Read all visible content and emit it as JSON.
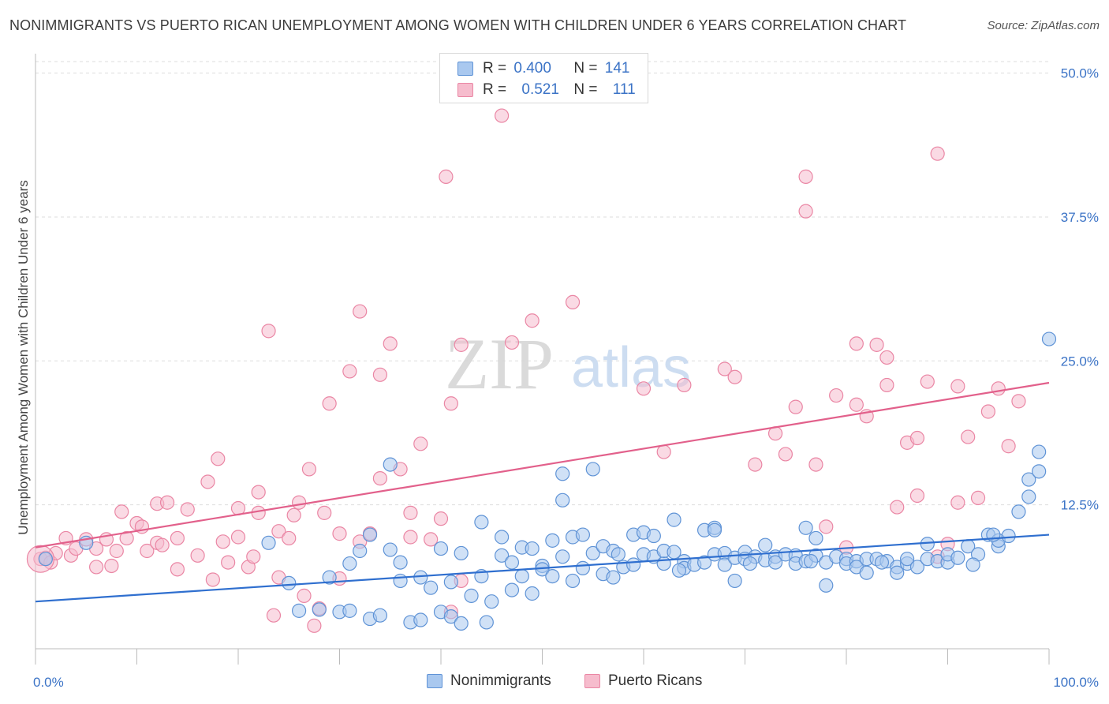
{
  "title": "NONIMMIGRANTS VS PUERTO RICAN UNEMPLOYMENT AMONG WOMEN WITH CHILDREN UNDER 6 YEARS CORRELATION CHART",
  "source": "Source: ZipAtlas.com",
  "watermark": {
    "zip": "ZIP",
    "atlas": "atlas"
  },
  "legend": {
    "rows": [
      {
        "r_label": "R =",
        "r_value": "0.400",
        "n_label": "N =",
        "n_value": "141"
      },
      {
        "r_label": "R =",
        "r_value": "0.521",
        "n_label": "N =",
        "n_value": "111"
      }
    ]
  },
  "colors": {
    "blue_fill": "#a9c8ef",
    "blue_stroke": "#5f93d6",
    "blue_line": "#2f6fcf",
    "pink_fill": "#f6bccd",
    "pink_stroke": "#ea86a4",
    "pink_line": "#e2608b",
    "tick_label": "#3b73c6",
    "grid": "#dddddd"
  },
  "chart_data": {
    "type": "scatter",
    "title": "NONIMMIGRANTS VS PUERTO RICAN UNEMPLOYMENT AMONG WOMEN WITH CHILDREN UNDER 6 YEARS CORRELATION CHART",
    "xlabel": "",
    "ylabel": "Unemployment Among Women with Children Under 6 years",
    "xlim": [
      0,
      100
    ],
    "ylim": [
      0,
      51
    ],
    "x_tick_labels": [
      "0.0%",
      "100.0%"
    ],
    "y_ticks": [
      12.5,
      25.0,
      37.5,
      50.0
    ],
    "y_tick_labels": [
      "12.5%",
      "25.0%",
      "37.5%",
      "50.0%"
    ],
    "grid": "horizontal dashed",
    "legend_position": "top-center",
    "series": [
      {
        "name": "Nonimmigrants",
        "trend": [
          [
            0,
            4.1
          ],
          [
            100,
            9.9
          ]
        ],
        "points": [
          [
            1,
            7.8
          ],
          [
            5,
            9.2
          ],
          [
            23,
            9.2
          ],
          [
            25,
            5.7
          ],
          [
            26,
            3.3
          ],
          [
            28,
            3.4
          ],
          [
            29,
            6.2
          ],
          [
            30,
            3.2
          ],
          [
            31,
            7.4
          ],
          [
            31,
            3.3
          ],
          [
            32,
            8.5
          ],
          [
            33,
            9.9
          ],
          [
            33,
            2.6
          ],
          [
            34,
            2.9
          ],
          [
            35,
            16.0
          ],
          [
            35,
            8.6
          ],
          [
            36,
            7.5
          ],
          [
            36,
            5.9
          ],
          [
            37,
            2.3
          ],
          [
            38,
            6.2
          ],
          [
            38,
            2.5
          ],
          [
            39,
            5.3
          ],
          [
            40,
            3.2
          ],
          [
            40,
            8.7
          ],
          [
            41,
            2.8
          ],
          [
            41,
            5.8
          ],
          [
            42,
            2.2
          ],
          [
            42,
            8.3
          ],
          [
            43,
            4.6
          ],
          [
            44,
            6.3
          ],
          [
            44,
            11.0
          ],
          [
            45,
            4.1
          ],
          [
            46,
            8.1
          ],
          [
            46,
            9.7
          ],
          [
            47,
            5.1
          ],
          [
            47,
            7.5
          ],
          [
            48,
            8.8
          ],
          [
            48,
            6.3
          ],
          [
            49,
            8.7
          ],
          [
            49,
            4.8
          ],
          [
            50,
            7.2
          ],
          [
            50,
            6.9
          ],
          [
            51,
            9.4
          ],
          [
            51,
            6.3
          ],
          [
            52,
            8.0
          ],
          [
            52,
            12.9
          ],
          [
            52,
            15.2
          ],
          [
            53,
            5.9
          ],
          [
            53,
            9.7
          ],
          [
            54,
            9.9
          ],
          [
            54,
            7.0
          ],
          [
            55,
            8.3
          ],
          [
            55,
            15.6
          ],
          [
            56,
            6.5
          ],
          [
            56,
            8.9
          ],
          [
            57,
            6.2
          ],
          [
            57,
            8.5
          ],
          [
            58,
            7.1
          ],
          [
            59,
            9.9
          ],
          [
            59,
            7.3
          ],
          [
            60,
            10.1
          ],
          [
            60,
            8.2
          ],
          [
            61,
            8.0
          ],
          [
            61,
            9.8
          ],
          [
            62,
            7.4
          ],
          [
            62,
            8.5
          ],
          [
            63,
            8.4
          ],
          [
            63,
            11.2
          ],
          [
            64,
            7.6
          ],
          [
            64,
            7.0
          ],
          [
            65,
            7.3
          ],
          [
            66,
            10.3
          ],
          [
            66,
            7.5
          ],
          [
            67,
            8.2
          ],
          [
            67,
            10.5
          ],
          [
            67,
            10.3
          ],
          [
            68,
            8.3
          ],
          [
            68,
            7.3
          ],
          [
            69,
            5.9
          ],
          [
            69,
            7.9
          ],
          [
            70,
            8.4
          ],
          [
            70,
            7.8
          ],
          [
            71,
            8.0
          ],
          [
            72,
            7.7
          ],
          [
            72,
            9.0
          ],
          [
            73,
            8.0
          ],
          [
            73,
            7.5
          ],
          [
            74,
            8.2
          ],
          [
            75,
            8.1
          ],
          [
            75,
            7.4
          ],
          [
            76,
            10.5
          ],
          [
            76,
            7.6
          ],
          [
            77,
            8.1
          ],
          [
            77,
            9.6
          ],
          [
            78,
            7.5
          ],
          [
            78,
            5.5
          ],
          [
            79,
            8.0
          ],
          [
            80,
            7.8
          ],
          [
            80,
            7.4
          ],
          [
            81,
            7.6
          ],
          [
            81,
            7.1
          ],
          [
            82,
            6.6
          ],
          [
            82,
            7.8
          ],
          [
            83,
            7.8
          ],
          [
            84,
            7.6
          ],
          [
            85,
            7.1
          ],
          [
            85,
            6.6
          ],
          [
            86,
            7.4
          ],
          [
            86,
            7.8
          ],
          [
            87,
            7.1
          ],
          [
            88,
            9.1
          ],
          [
            88,
            7.8
          ],
          [
            89,
            7.6
          ],
          [
            90,
            7.5
          ],
          [
            90,
            8.2
          ],
          [
            91,
            7.9
          ],
          [
            92,
            8.9
          ],
          [
            93,
            8.2
          ],
          [
            94,
            9.9
          ],
          [
            95,
            8.9
          ],
          [
            95,
            9.4
          ],
          [
            96,
            9.8
          ],
          [
            97,
            11.9
          ],
          [
            98,
            13.2
          ],
          [
            98,
            14.7
          ],
          [
            99,
            15.4
          ],
          [
            99,
            17.1
          ],
          [
            100,
            26.9
          ],
          [
            94.5,
            9.9
          ],
          [
            92.5,
            7.3
          ],
          [
            83.5,
            7.5
          ],
          [
            76.5,
            7.6
          ],
          [
            70.5,
            7.4
          ],
          [
            63.5,
            6.8
          ],
          [
            57.5,
            8.2
          ],
          [
            44.5,
            2.3
          ]
        ]
      },
      {
        "name": "Puerto Ricans",
        "trend": [
          [
            0,
            8.8
          ],
          [
            100,
            23.1
          ]
        ],
        "points": [
          [
            0.5,
            7.8
          ],
          [
            1,
            7.9
          ],
          [
            1.5,
            7.5
          ],
          [
            2,
            8.3
          ],
          [
            3,
            9.6
          ],
          [
            3.5,
            8.1
          ],
          [
            4,
            8.7
          ],
          [
            5,
            9.5
          ],
          [
            6,
            7.1
          ],
          [
            6,
            8.7
          ],
          [
            7,
            9.5
          ],
          [
            7.5,
            7.2
          ],
          [
            8,
            8.5
          ],
          [
            8.5,
            11.9
          ],
          [
            9,
            9.6
          ],
          [
            10,
            10.9
          ],
          [
            10.5,
            10.6
          ],
          [
            11,
            8.5
          ],
          [
            12,
            9.2
          ],
          [
            12,
            12.6
          ],
          [
            12.5,
            9.0
          ],
          [
            13,
            12.7
          ],
          [
            14,
            9.6
          ],
          [
            14,
            6.9
          ],
          [
            15,
            12.1
          ],
          [
            16,
            8.1
          ],
          [
            17,
            14.5
          ],
          [
            17.5,
            6.0
          ],
          [
            18,
            16.5
          ],
          [
            18.5,
            9.3
          ],
          [
            19,
            7.5
          ],
          [
            20,
            9.7
          ],
          [
            20,
            12.2
          ],
          [
            21,
            7.1
          ],
          [
            21.5,
            8.0
          ],
          [
            22,
            13.6
          ],
          [
            22,
            11.8
          ],
          [
            23,
            27.6
          ],
          [
            23.5,
            2.9
          ],
          [
            24,
            10.2
          ],
          [
            24,
            6.2
          ],
          [
            25,
            9.6
          ],
          [
            25.5,
            11.6
          ],
          [
            26,
            12.7
          ],
          [
            26.5,
            4.6
          ],
          [
            27,
            15.6
          ],
          [
            27.5,
            2.0
          ],
          [
            28,
            3.5
          ],
          [
            28.5,
            11.8
          ],
          [
            29,
            21.3
          ],
          [
            30,
            10.0
          ],
          [
            30,
            6.1
          ],
          [
            31,
            24.1
          ],
          [
            32,
            29.3
          ],
          [
            32,
            9.3
          ],
          [
            33,
            10.0
          ],
          [
            34,
            14.8
          ],
          [
            34,
            23.8
          ],
          [
            35,
            26.5
          ],
          [
            36,
            15.6
          ],
          [
            37,
            11.8
          ],
          [
            38,
            17.8
          ],
          [
            39,
            9.5
          ],
          [
            40,
            11.3
          ],
          [
            41,
            21.3
          ],
          [
            41,
            3.2
          ],
          [
            42,
            26.4
          ],
          [
            42,
            5.9
          ],
          [
            46,
            46.3
          ],
          [
            49,
            28.5
          ],
          [
            53,
            30.1
          ],
          [
            60,
            22.6
          ],
          [
            62,
            17.1
          ],
          [
            64,
            22.9
          ],
          [
            68,
            24.3
          ],
          [
            69,
            23.6
          ],
          [
            71,
            16.0
          ],
          [
            73,
            18.7
          ],
          [
            74,
            16.9
          ],
          [
            75,
            21.0
          ],
          [
            76,
            41.0
          ],
          [
            76,
            38.0
          ],
          [
            77,
            16.0
          ],
          [
            78,
            10.6
          ],
          [
            79,
            22.0
          ],
          [
            80,
            8.8
          ],
          [
            81,
            26.5
          ],
          [
            81,
            21.2
          ],
          [
            82,
            20.2
          ],
          [
            83,
            26.4
          ],
          [
            84,
            25.3
          ],
          [
            84,
            22.9
          ],
          [
            85,
            12.3
          ],
          [
            86,
            17.9
          ],
          [
            87,
            18.3
          ],
          [
            87,
            13.3
          ],
          [
            88,
            23.2
          ],
          [
            89,
            43.0
          ],
          [
            89,
            8.0
          ],
          [
            90,
            9.1
          ],
          [
            91,
            12.7
          ],
          [
            91,
            22.8
          ],
          [
            92,
            18.4
          ],
          [
            93,
            13.1
          ],
          [
            94,
            20.6
          ],
          [
            95,
            22.6
          ],
          [
            96,
            17.6
          ],
          [
            97,
            21.5
          ],
          [
            40.5,
            41.0
          ],
          [
            47,
            26.6
          ],
          [
            37,
            9.7
          ]
        ]
      }
    ]
  },
  "bottom_legend": {
    "series1": "Nonimmigrants",
    "series2": "Puerto Ricans"
  }
}
